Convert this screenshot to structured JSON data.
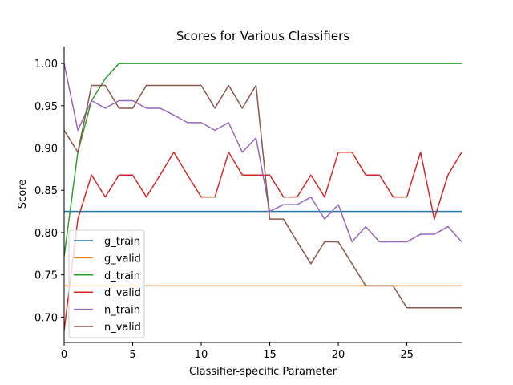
{
  "chart_data": {
    "type": "line",
    "title": "Scores for Various Classifiers",
    "xlabel": "Classifier-specific Parameter",
    "ylabel": "Score",
    "xlim": [
      0,
      29
    ],
    "ylim": [
      0.67,
      1.02
    ],
    "xticks": [
      0,
      5,
      10,
      15,
      20,
      25
    ],
    "yticks": [
      0.7,
      0.75,
      0.8,
      0.85,
      0.9,
      0.95,
      1.0
    ],
    "grid": false,
    "legend_position": "lower-left",
    "series": [
      {
        "name": "g_train",
        "color": "#1f77b4",
        "x": [
          0,
          29
        ],
        "values": [
          0.825,
          0.825
        ]
      },
      {
        "name": "g_valid",
        "color": "#ff7f0e",
        "x": [
          0,
          29
        ],
        "values": [
          0.737,
          0.737
        ]
      },
      {
        "name": "d_train",
        "color": "#2ca02c",
        "x": [
          0,
          1,
          2,
          3,
          4,
          5,
          6,
          7,
          8,
          9,
          10,
          11,
          12,
          13,
          14,
          15,
          16,
          17,
          18,
          19,
          20,
          21,
          22,
          23,
          24,
          25,
          26,
          27,
          28,
          29
        ],
        "values": [
          0.772,
          0.895,
          0.956,
          0.982,
          1.0,
          1.0,
          1.0,
          1.0,
          1.0,
          1.0,
          1.0,
          1.0,
          1.0,
          1.0,
          1.0,
          1.0,
          1.0,
          1.0,
          1.0,
          1.0,
          1.0,
          1.0,
          1.0,
          1.0,
          1.0,
          1.0,
          1.0,
          1.0,
          1.0,
          1.0
        ]
      },
      {
        "name": "d_valid",
        "color": "#d62728",
        "x": [
          0,
          1,
          2,
          3,
          4,
          5,
          6,
          7,
          8,
          9,
          10,
          11,
          12,
          13,
          14,
          15,
          16,
          17,
          18,
          19,
          20,
          21,
          22,
          23,
          24,
          25,
          26,
          27,
          28,
          29
        ],
        "values": [
          0.684,
          0.816,
          0.868,
          0.842,
          0.868,
          0.868,
          0.842,
          0.868,
          0.895,
          0.868,
          0.842,
          0.842,
          0.895,
          0.868,
          0.868,
          0.868,
          0.842,
          0.842,
          0.868,
          0.842,
          0.895,
          0.895,
          0.868,
          0.868,
          0.842,
          0.842,
          0.895,
          0.816,
          0.868,
          0.895
        ]
      },
      {
        "name": "n_train",
        "color": "#9467bd",
        "x": [
          0,
          1,
          2,
          3,
          4,
          5,
          6,
          7,
          8,
          9,
          10,
          11,
          12,
          13,
          14,
          15,
          16,
          17,
          18,
          19,
          20,
          21,
          22,
          23,
          24,
          25,
          26,
          27,
          28,
          29
        ],
        "values": [
          1.0,
          0.921,
          0.956,
          0.947,
          0.956,
          0.956,
          0.947,
          0.947,
          0.939,
          0.93,
          0.93,
          0.921,
          0.93,
          0.895,
          0.912,
          0.825,
          0.833,
          0.833,
          0.842,
          0.816,
          0.833,
          0.789,
          0.807,
          0.789,
          0.789,
          0.789,
          0.798,
          0.798,
          0.807,
          0.789
        ]
      },
      {
        "name": "n_valid",
        "color": "#8c564b",
        "x": [
          0,
          1,
          2,
          3,
          4,
          5,
          6,
          7,
          8,
          9,
          10,
          11,
          12,
          13,
          14,
          15,
          16,
          17,
          18,
          19,
          20,
          21,
          22,
          23,
          24,
          25,
          26,
          27,
          28,
          29
        ],
        "values": [
          0.921,
          0.895,
          0.974,
          0.974,
          0.947,
          0.947,
          0.974,
          0.974,
          0.974,
          0.974,
          0.974,
          0.947,
          0.974,
          0.947,
          0.974,
          0.816,
          0.816,
          0.789,
          0.763,
          0.789,
          0.789,
          0.763,
          0.737,
          0.737,
          0.737,
          0.711,
          0.711,
          0.711,
          0.711,
          0.711
        ]
      }
    ]
  }
}
